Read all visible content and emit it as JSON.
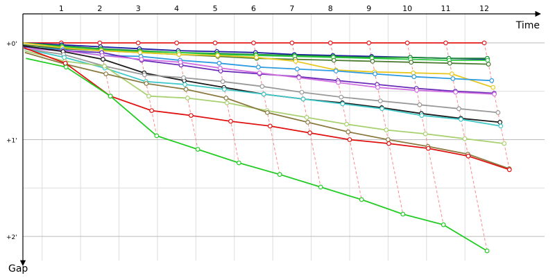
{
  "chart_data": {
    "type": "line",
    "xlabel": "Time",
    "ylabel": "Gap",
    "x_ticks": [
      "1",
      "2",
      "3",
      "4",
      "5",
      "6",
      "7",
      "8",
      "9",
      "10",
      "11",
      "12"
    ],
    "y_ticks": [
      {
        "value": 0,
        "label": "+0'"
      },
      {
        "value": 1,
        "label": "+1'"
      },
      {
        "value": 2,
        "label": "+2'"
      }
    ],
    "xlim": [
      0,
      13.3
    ],
    "ylim": [
      -0.3,
      2.25
    ],
    "y_inverted": true,
    "grid": true,
    "legend": "none",
    "colors": {
      "axis": "#000000",
      "grid": "#bbbbbb",
      "minor_grid": "#dddddd",
      "lap_line": "#ff8888"
    },
    "series": [
      {
        "color": "#e41a1c",
        "gaps": [
          0.0,
          0.0,
          0.0,
          0.0,
          0.0,
          0.0,
          0.0,
          0.0,
          0.0,
          0.0,
          0.0,
          0.0,
          0.0
        ]
      },
      {
        "color": "#1a1aa0",
        "gaps": [
          0.0,
          0.02,
          0.04,
          0.06,
          0.08,
          0.09,
          0.1,
          0.12,
          0.13,
          0.14,
          0.15,
          0.16,
          0.17
        ]
      },
      {
        "color": "#1f8b3a",
        "gaps": [
          0.0,
          0.03,
          0.06,
          0.08,
          0.1,
          0.11,
          0.12,
          0.13,
          0.14,
          0.15,
          0.15,
          0.16,
          0.16
        ]
      },
      {
        "color": "#2ecc40",
        "gaps": [
          0.0,
          0.04,
          0.07,
          0.09,
          0.1,
          0.12,
          0.13,
          0.14,
          0.15,
          0.16,
          0.17,
          0.18,
          0.18
        ]
      },
      {
        "color": "#4a7a30",
        "gaps": [
          0.02,
          0.06,
          0.08,
          0.1,
          0.12,
          0.14,
          0.16,
          0.17,
          0.18,
          0.19,
          0.2,
          0.21,
          0.22
        ]
      },
      {
        "color": "#e8c820",
        "gaps": [
          0.0,
          0.05,
          0.08,
          0.1,
          0.12,
          0.13,
          0.15,
          0.19,
          0.28,
          0.3,
          0.31,
          0.32,
          0.46
        ]
      },
      {
        "color": "#2e9be0",
        "gaps": [
          0.04,
          0.07,
          0.13,
          0.14,
          0.18,
          0.21,
          0.25,
          0.27,
          0.29,
          0.32,
          0.35,
          0.37,
          0.39
        ]
      },
      {
        "color": "#6a2ab8",
        "gaps": [
          0.04,
          0.08,
          0.1,
          0.18,
          0.23,
          0.29,
          0.32,
          0.35,
          0.39,
          0.43,
          0.47,
          0.5,
          0.52
        ]
      },
      {
        "color": "#d070e0",
        "gaps": [
          0.06,
          0.08,
          0.13,
          0.17,
          0.2,
          0.26,
          0.31,
          0.36,
          0.41,
          0.46,
          0.49,
          0.51,
          0.53
        ]
      },
      {
        "color": "#1a1a1a",
        "gaps": [
          0.03,
          0.09,
          0.17,
          0.31,
          0.39,
          0.46,
          0.53,
          0.58,
          0.62,
          0.67,
          0.73,
          0.78,
          0.82
        ]
      },
      {
        "color": "#999999",
        "gaps": [
          0.06,
          0.12,
          0.24,
          0.33,
          0.36,
          0.4,
          0.45,
          0.51,
          0.56,
          0.6,
          0.64,
          0.68,
          0.72
        ]
      },
      {
        "color": "#40c8c8",
        "gaps": [
          0.06,
          0.15,
          0.26,
          0.4,
          0.43,
          0.48,
          0.53,
          0.58,
          0.63,
          0.68,
          0.75,
          0.79,
          0.86
        ]
      },
      {
        "color": "#a8d070",
        "gaps": [
          0.08,
          0.19,
          0.24,
          0.55,
          0.57,
          0.62,
          0.7,
          0.77,
          0.84,
          0.9,
          0.94,
          0.99,
          1.04
        ]
      },
      {
        "color": "#8a7a40",
        "gaps": [
          0.1,
          0.22,
          0.32,
          0.42,
          0.48,
          0.57,
          0.72,
          0.82,
          0.92,
          1.0,
          1.07,
          1.15,
          1.3
        ]
      },
      {
        "color": "#e01010",
        "gaps": [
          0.05,
          0.21,
          0.55,
          0.7,
          0.75,
          0.81,
          0.86,
          0.93,
          1.0,
          1.04,
          1.09,
          1.17,
          1.31
        ]
      },
      {
        "color": "#22cc22",
        "gaps": [
          0.16,
          0.25,
          0.55,
          0.96,
          1.1,
          1.24,
          1.36,
          1.49,
          1.62,
          1.77,
          1.88,
          2.15
        ]
      }
    ]
  }
}
